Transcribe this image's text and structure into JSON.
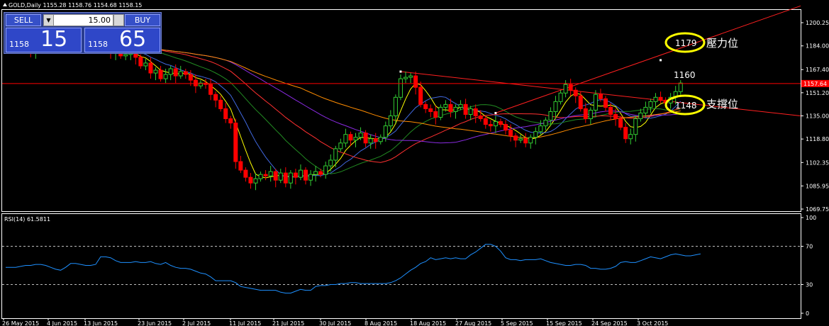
{
  "header": {
    "symbol_line": "GOLD,Daily  1155.28 1158.76 1154.68 1158.15"
  },
  "trade_panel": {
    "sell_label": "SELL",
    "buy_label": "BUY",
    "lot_value": "15.00",
    "sell_price_small": "1158",
    "sell_price_big": "15",
    "buy_price_small": "1158",
    "buy_price_big": "65"
  },
  "colors": {
    "background": "#000000",
    "bull": "#32cd32",
    "bear": "#ff0000",
    "ma_fast": "#ffff00",
    "ma_mid": "#4169e1",
    "ma_slow_a": "#ff3030",
    "ma_slow_b": "#ff8c00",
    "ma_purple": "#8a2be2",
    "ma_green": "#228b22",
    "rsi": "#1e90ff",
    "annotation_circle": "#ffff00"
  },
  "chart_data": [
    {
      "type": "candlestick",
      "symbol": "GOLD",
      "timeframe": "Daily",
      "ohlc_last": {
        "open": 1155.28,
        "high": 1158.76,
        "low": 1154.68,
        "close": 1158.15
      },
      "ylim": [
        1065,
        1210
      ],
      "y_ticks": [
        "1200.25",
        "1184.00",
        "1167.40",
        "1151.20",
        "1135.00",
        "1118.80",
        "1102.35",
        "1085.95",
        "1069.75"
      ],
      "current_price_label": "1157.64",
      "x_ticks": [
        "26 May 2015",
        "4 Jun 2015",
        "13 Jun 2015",
        "23 Jun 2015",
        "2 Jul 2015",
        "11 Jul 2015",
        "21 Jul 2015",
        "30 Jul 2015",
        "8 Aug 2015",
        "18 Aug 2015",
        "27 Aug 2015",
        "5 Sep 2015",
        "15 Sep 2015",
        "24 Sep 2015",
        "3 Oct 2015"
      ],
      "closes": [
        1190,
        1186,
        1188,
        1185,
        1183,
        1180,
        1185,
        1190,
        1183,
        1187,
        1185,
        1183,
        1188,
        1190,
        1187,
        1186,
        1188,
        1186,
        1184,
        1185,
        1182,
        1179,
        1180,
        1177,
        1178,
        1182,
        1176,
        1170,
        1172,
        1165,
        1167,
        1161,
        1164,
        1168,
        1163,
        1166,
        1164,
        1160,
        1156,
        1158,
        1157,
        1150,
        1146,
        1140,
        1133,
        1130,
        1103,
        1097,
        1092,
        1088,
        1091,
        1094,
        1093,
        1096,
        1090,
        1095,
        1088,
        1095,
        1092,
        1097,
        1090,
        1094,
        1096,
        1094,
        1100,
        1104,
        1112,
        1116,
        1122,
        1118,
        1120,
        1123,
        1116,
        1119,
        1117,
        1120,
        1128,
        1135,
        1148,
        1161,
        1162,
        1163,
        1155,
        1143,
        1140,
        1138,
        1134,
        1141,
        1143,
        1138,
        1141,
        1143,
        1136,
        1140,
        1135,
        1133,
        1129,
        1128,
        1131,
        1129,
        1125,
        1121,
        1118,
        1119,
        1116,
        1120,
        1124,
        1128,
        1132,
        1138,
        1145,
        1151,
        1157,
        1153,
        1149,
        1140,
        1133,
        1139,
        1150,
        1147,
        1141,
        1136,
        1133,
        1127,
        1119,
        1122,
        1133,
        1137,
        1141,
        1145,
        1148,
        1146,
        1144,
        1148,
        1152,
        1158
      ],
      "annotations": [
        {
          "text": "1179",
          "circled": true
        },
        {
          "text": "壓力位"
        },
        {
          "text": "1160"
        },
        {
          "text": "1148",
          "circled": true
        },
        {
          "text": "支撐位"
        }
      ]
    },
    {
      "type": "line",
      "title": "RSI(14) 61.5811",
      "ylim": [
        0,
        100
      ],
      "y_ticks": [
        "100",
        "70",
        "30",
        "0"
      ],
      "levels": [
        70,
        30
      ],
      "values": [
        48,
        48,
        48,
        49,
        50,
        50,
        51,
        51,
        50,
        48,
        46,
        45,
        48,
        52,
        52,
        51,
        50,
        50,
        51,
        59,
        59,
        58,
        55,
        53,
        53,
        53,
        54,
        53,
        53,
        54,
        52,
        51,
        53,
        50,
        48,
        47,
        47,
        46,
        44,
        42,
        41,
        38,
        34,
        34,
        34,
        34,
        32,
        28,
        27,
        26,
        25,
        24,
        24,
        24,
        24,
        22,
        21,
        21,
        23,
        25,
        24,
        24,
        28,
        29,
        29,
        30,
        30,
        31,
        31,
        32,
        32,
        31,
        31,
        31,
        31,
        31,
        31,
        32,
        34,
        37,
        41,
        45,
        48,
        52,
        54,
        58,
        56,
        57,
        58,
        57,
        58,
        57,
        57,
        61,
        64,
        68,
        72,
        72,
        70,
        65,
        58,
        56,
        56,
        55,
        56,
        56,
        56,
        57,
        55,
        53,
        52,
        51,
        50,
        50,
        51,
        51,
        50,
        47,
        47,
        46,
        46,
        47,
        49,
        53,
        54,
        53,
        53,
        55,
        57,
        59,
        58,
        57,
        59,
        61,
        62,
        61,
        60,
        60,
        61,
        62
      ]
    }
  ]
}
